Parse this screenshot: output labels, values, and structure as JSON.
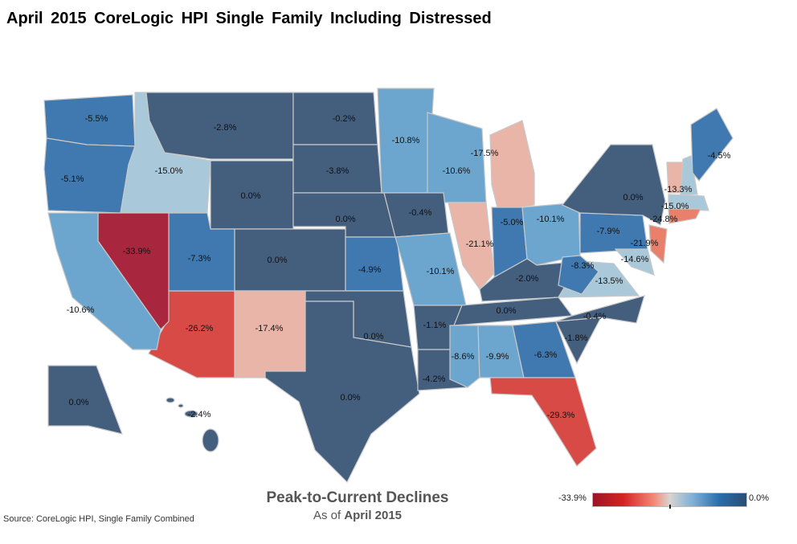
{
  "title": "April 2015 CoreLogic HPI Single Family Including Distressed",
  "legend": {
    "title": "Peak-to-Current Declines",
    "subtitle_prefix": "As of",
    "subtitle_date": "April 2015",
    "min_label": "-33.9%",
    "max_label": "0.0%",
    "min": -33.9,
    "max": 0.0,
    "colors": [
      "#a8273f",
      "#d84a45",
      "#e8806c",
      "#e8b5a8",
      "#a9c9da",
      "#6ca6cf",
      "#3f79b0",
      "#445e7e"
    ]
  },
  "source": "Source: CoreLogic HPI, Single Family Combined",
  "states": [
    {
      "id": "WA",
      "value": -5.5,
      "label": "-5.5%"
    },
    {
      "id": "OR",
      "value": -5.1,
      "label": "-5.1%"
    },
    {
      "id": "ID",
      "value": -15.0,
      "label": "-15.0%"
    },
    {
      "id": "MT",
      "value": -2.8,
      "label": "-2.8%"
    },
    {
      "id": "WY",
      "value": 0.0,
      "label": "0.0%"
    },
    {
      "id": "ND",
      "value": -0.2,
      "label": "-0.2%"
    },
    {
      "id": "SD",
      "value": -3.8,
      "label": "-3.8%"
    },
    {
      "id": "NE",
      "value": 0.0,
      "label": "0.0%"
    },
    {
      "id": "CO",
      "value": 0.0,
      "label": "0.0%"
    },
    {
      "id": "KS",
      "value": -4.9,
      "label": "-4.9%"
    },
    {
      "id": "OK",
      "value": 0.0,
      "label": "0.0%"
    },
    {
      "id": "TX",
      "value": 0.0,
      "label": "0.0%"
    },
    {
      "id": "NM",
      "value": -17.4,
      "label": "-17.4%"
    },
    {
      "id": "AZ",
      "value": -26.2,
      "label": "-26.2%"
    },
    {
      "id": "UT",
      "value": -7.3,
      "label": "-7.3%"
    },
    {
      "id": "NV",
      "value": -33.9,
      "label": "-33.9%"
    },
    {
      "id": "CA",
      "value": -10.6,
      "label": "-10.6%"
    },
    {
      "id": "MN",
      "value": -10.8,
      "label": "-10.8%"
    },
    {
      "id": "WI",
      "value": -10.6,
      "label": "-10.6%"
    },
    {
      "id": "IA",
      "value": -0.4,
      "label": "-0.4%"
    },
    {
      "id": "MO",
      "value": -10.1,
      "label": "-10.1%"
    },
    {
      "id": "AR",
      "value": -1.1,
      "label": "-1.1%"
    },
    {
      "id": "LA",
      "value": -4.2,
      "label": "-4.2%"
    },
    {
      "id": "IL",
      "value": -21.1,
      "label": "-21.1%"
    },
    {
      "id": "MI",
      "value": -17.5,
      "label": "-17.5%"
    },
    {
      "id": "IN",
      "value": -5.0,
      "label": "-5.0%"
    },
    {
      "id": "OH",
      "value": -10.1,
      "label": "-10.1%"
    },
    {
      "id": "KY",
      "value": -2.0,
      "label": "-2.0%"
    },
    {
      "id": "TN",
      "value": 0.0,
      "label": "0.0%"
    },
    {
      "id": "MS",
      "value": -8.6,
      "label": "-8.6%"
    },
    {
      "id": "AL",
      "value": -9.9,
      "label": "-9.9%"
    },
    {
      "id": "GA",
      "value": -6.3,
      "label": "-6.3%"
    },
    {
      "id": "FL",
      "value": -29.3,
      "label": "-29.3%"
    },
    {
      "id": "SC",
      "value": -1.8,
      "label": "-1.8%"
    },
    {
      "id": "NC",
      "value": -0.4,
      "label": "-0.4%"
    },
    {
      "id": "VA",
      "value": -13.5,
      "label": "-13.5%"
    },
    {
      "id": "WV",
      "value": -8.3,
      "label": "-8.3%"
    },
    {
      "id": "PA",
      "value": -7.9,
      "label": "-7.9%"
    },
    {
      "id": "NY",
      "value": 0.0,
      "label": "0.0%"
    },
    {
      "id": "NH",
      "value": -13.3,
      "label": "-13.3%"
    },
    {
      "id": "ME",
      "value": -4.5,
      "label": "-4.5%"
    },
    {
      "id": "MA",
      "value": -15.0,
      "label": "-15.0%"
    },
    {
      "id": "CT",
      "value": -24.8,
      "label": "-24.8%"
    },
    {
      "id": "NJ",
      "value": -21.9,
      "label": "-21.9%"
    },
    {
      "id": "MD",
      "value": -14.6,
      "label": "-14.6%"
    },
    {
      "id": "AK",
      "value": 0.0,
      "label": "0.0%"
    },
    {
      "id": "HI",
      "value": -2.4,
      "label": "-2.4%"
    }
  ]
}
